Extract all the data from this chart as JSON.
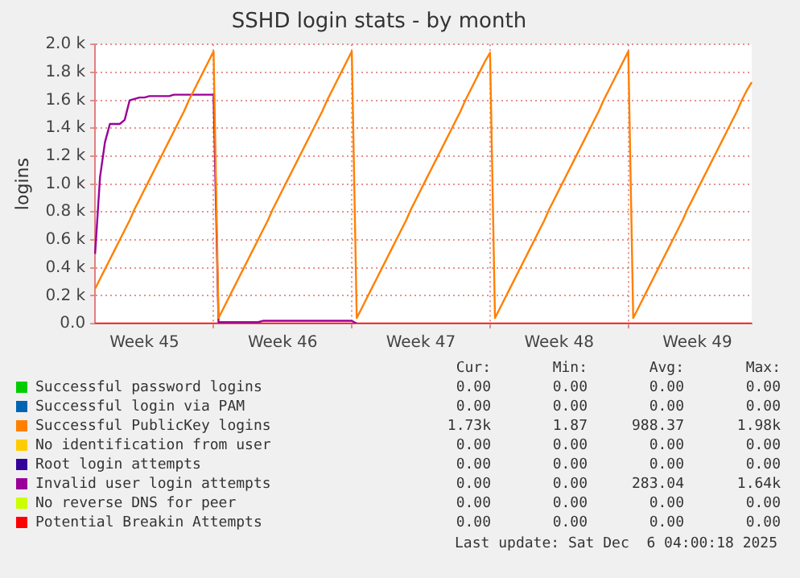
{
  "chart_data": {
    "type": "line",
    "title": "SSHD login stats - by month",
    "ylabel": "logins",
    "categories": [
      null,
      null,
      null,
      null,
      null,
      null,
      null,
      null,
      null,
      null,
      "Week 45",
      null,
      null,
      null,
      null,
      null,
      null,
      null,
      null,
      null,
      null,
      null,
      null,
      null,
      null,
      null,
      null,
      null,
      null,
      null,
      null,
      null,
      null,
      null,
      null,
      null,
      null,
      null,
      "Week 46",
      null,
      null,
      null,
      null,
      null,
      null,
      null,
      null,
      null,
      null,
      null,
      null,
      null,
      null,
      null,
      null,
      null,
      null,
      null,
      null,
      null,
      null,
      null,
      null,
      null,
      null,
      null,
      "Week 47",
      null,
      null,
      null,
      null,
      null,
      null,
      null,
      null,
      null,
      null,
      null,
      null,
      null,
      null,
      null,
      null,
      null,
      null,
      null,
      null,
      null,
      null,
      null,
      null,
      null,
      null,
      null,
      "Week 48",
      null,
      null,
      null,
      null,
      null,
      null,
      null,
      null,
      null,
      null,
      null,
      null,
      null,
      null,
      null,
      null,
      null,
      null,
      null,
      null,
      null,
      null,
      null,
      null,
      null,
      null,
      null,
      "Week 49",
      null,
      null,
      null,
      null,
      null,
      null,
      null,
      null,
      null,
      null,
      null
    ],
    "ylim": [
      0,
      2000
    ],
    "yticks": [
      {
        "value": 0,
        "label": "0.0"
      },
      {
        "value": 200,
        "label": "0.2 k"
      },
      {
        "value": 400,
        "label": "0.4 k"
      },
      {
        "value": 600,
        "label": "0.6 k"
      },
      {
        "value": 800,
        "label": "0.8 k"
      },
      {
        "value": 1000,
        "label": "1.0 k"
      },
      {
        "value": 1200,
        "label": "1.2 k"
      },
      {
        "value": 1400,
        "label": "1.4 k"
      },
      {
        "value": 1600,
        "label": "1.6 k"
      },
      {
        "value": 1800,
        "label": "1.8 k"
      },
      {
        "value": 2000,
        "label": "2.0 k"
      }
    ],
    "grid": true,
    "legend": "bottom",
    "marker": "none",
    "line_style": "solid",
    "series": [
      {
        "name": "Successful password logins",
        "color": "#00cc00",
        "values": [
          null,
          null,
          null,
          null,
          null,
          null,
          null,
          null,
          null,
          null,
          null,
          null,
          null,
          null,
          null,
          null,
          null,
          null,
          null,
          null,
          null,
          null,
          null,
          null,
          null,
          null,
          null,
          null,
          null,
          null,
          null,
          null,
          null,
          null,
          null,
          null,
          null,
          null,
          null,
          null,
          null,
          null,
          null,
          null,
          null,
          null,
          null,
          null,
          null,
          null,
          null,
          null,
          null,
          null,
          null,
          null,
          null,
          null,
          null,
          null,
          null,
          null,
          null,
          null,
          null,
          null,
          null,
          null,
          null,
          null,
          null,
          null,
          null,
          null,
          null,
          null,
          null,
          null,
          null,
          null,
          null,
          null,
          null,
          null,
          null,
          null,
          null,
          null,
          null,
          null,
          null,
          null,
          null,
          null,
          null,
          null,
          null,
          null,
          null,
          null,
          null,
          null,
          null,
          null,
          null,
          null,
          null,
          null,
          null,
          null,
          null,
          null,
          null,
          null,
          null,
          null,
          null,
          null,
          null,
          null,
          null,
          null,
          null,
          null,
          null,
          null,
          null,
          null,
          null,
          null,
          null,
          null,
          null,
          null
        ]
      },
      {
        "name": "Successful login via PAM",
        "color": "#0066b3",
        "values": [
          null,
          null,
          null,
          null,
          null,
          null,
          null,
          null,
          null,
          null,
          null,
          null,
          null,
          null,
          null,
          null,
          null,
          null,
          null,
          null,
          null,
          null,
          null,
          null,
          null,
          null,
          null,
          null,
          null,
          null,
          null,
          null,
          null,
          null,
          null,
          null,
          null,
          null,
          null,
          null,
          null,
          null,
          null,
          null,
          null,
          null,
          null,
          null,
          null,
          null,
          null,
          null,
          null,
          null,
          null,
          null,
          null,
          null,
          null,
          null,
          null,
          null,
          null,
          null,
          null,
          null,
          null,
          null,
          null,
          null,
          null,
          null,
          null,
          null,
          null,
          null,
          null,
          null,
          null,
          null,
          null,
          null,
          null,
          null,
          null,
          null,
          null,
          null,
          null,
          null,
          null,
          null,
          null,
          null,
          null,
          null,
          null,
          null,
          null,
          null,
          null,
          null,
          null,
          null,
          null,
          null,
          null,
          null,
          null,
          null,
          null,
          null,
          null,
          null,
          null,
          null,
          null,
          null,
          null,
          null,
          null,
          null,
          null,
          null,
          null,
          null,
          null,
          null,
          null,
          null,
          null,
          null,
          null,
          null
        ]
      },
      {
        "name": "Successful PublicKey logins",
        "color": "#ff8000",
        "values": [
          250,
          320,
          390,
          460,
          530,
          600,
          670,
          740,
          820,
          890,
          960,
          1030,
          1100,
          1170,
          1240,
          1310,
          1380,
          1450,
          1520,
          1600,
          1670,
          1740,
          1810,
          1880,
          1950,
          40,
          110,
          180,
          250,
          320,
          390,
          460,
          530,
          600,
          670,
          740,
          820,
          890,
          960,
          1030,
          1100,
          1170,
          1240,
          1310,
          1380,
          1450,
          1520,
          1600,
          1670,
          1740,
          1810,
          1880,
          1950,
          40,
          110,
          180,
          250,
          320,
          390,
          460,
          530,
          600,
          670,
          740,
          820,
          890,
          960,
          1030,
          1100,
          1170,
          1240,
          1310,
          1380,
          1450,
          1520,
          1600,
          1670,
          1740,
          1810,
          1880,
          1940,
          40,
          110,
          180,
          250,
          320,
          390,
          460,
          530,
          600,
          670,
          740,
          820,
          890,
          960,
          1030,
          1100,
          1170,
          1240,
          1310,
          1380,
          1450,
          1520,
          1600,
          1670,
          1740,
          1810,
          1880,
          1950,
          40,
          110,
          180,
          250,
          320,
          390,
          460,
          530,
          600,
          670,
          740,
          820,
          890,
          960,
          1030,
          1100,
          1170,
          1240,
          1310,
          1380,
          1450,
          1520,
          1600,
          1670,
          1730
        ]
      },
      {
        "name": "No identification from user",
        "color": "#ffcc00",
        "values": [
          null,
          null,
          null,
          null,
          null,
          null,
          null,
          null,
          null,
          null,
          null,
          null,
          null,
          null,
          null,
          null,
          null,
          null,
          null,
          null,
          null,
          null,
          null,
          null,
          null,
          null,
          null,
          null,
          null,
          null,
          null,
          null,
          null,
          null,
          null,
          null,
          null,
          null,
          null,
          null,
          null,
          null,
          null,
          null,
          null,
          null,
          null,
          null,
          null,
          null,
          null,
          null,
          null,
          null,
          null,
          null,
          null,
          null,
          null,
          null,
          null,
          null,
          null,
          null,
          null,
          null,
          null,
          null,
          null,
          null,
          null,
          null,
          null,
          null,
          null,
          null,
          null,
          null,
          null,
          null,
          null,
          null,
          null,
          null,
          null,
          null,
          null,
          null,
          null,
          null,
          null,
          null,
          null,
          null,
          null,
          null,
          null,
          null,
          null,
          null,
          null,
          null,
          null,
          null,
          null,
          null,
          null,
          null,
          null,
          null,
          null,
          null,
          null,
          null,
          null,
          null,
          null,
          null,
          null,
          null,
          null,
          null,
          null,
          null,
          null,
          null,
          null,
          null,
          null,
          null,
          null,
          null,
          null,
          null
        ]
      },
      {
        "name": "Root login attempts",
        "color": "#330099",
        "values": [
          null,
          null,
          null,
          null,
          null,
          null,
          null,
          null,
          null,
          null,
          null,
          null,
          null,
          null,
          null,
          null,
          null,
          null,
          null,
          null,
          null,
          null,
          null,
          null,
          null,
          null,
          null,
          null,
          null,
          null,
          null,
          null,
          null,
          null,
          null,
          null,
          null,
          null,
          null,
          null,
          null,
          null,
          null,
          null,
          null,
          null,
          null,
          null,
          null,
          null,
          null,
          null,
          null,
          null,
          null,
          null,
          null,
          null,
          null,
          null,
          null,
          null,
          null,
          null,
          null,
          null,
          null,
          null,
          null,
          null,
          null,
          null,
          null,
          null,
          null,
          null,
          null,
          null,
          null,
          null,
          null,
          null,
          null,
          null,
          null,
          null,
          null,
          null,
          null,
          null,
          null,
          null,
          null,
          null,
          null,
          null,
          null,
          null,
          null,
          null,
          null,
          null,
          null,
          null,
          null,
          null,
          null,
          null,
          null,
          null,
          null,
          null,
          null,
          null,
          null,
          null,
          null,
          null,
          null,
          null,
          null,
          null,
          null,
          null,
          null,
          null,
          null,
          null,
          null,
          null,
          null,
          null,
          null,
          null
        ]
      },
      {
        "name": "Invalid user login attempts",
        "color": "#990099",
        "values": [
          500,
          1050,
          1300,
          1430,
          1430,
          1430,
          1460,
          1600,
          1610,
          1620,
          1620,
          1630,
          1630,
          1630,
          1630,
          1630,
          1640,
          1640,
          1640,
          1640,
          1640,
          1640,
          1640,
          1640,
          1640,
          10,
          10,
          10,
          10,
          10,
          10,
          10,
          10,
          10,
          20,
          20,
          20,
          20,
          20,
          20,
          20,
          20,
          20,
          20,
          20,
          20,
          20,
          20,
          20,
          20,
          20,
          20,
          20,
          0,
          null,
          null,
          null,
          null,
          null,
          null,
          null,
          null,
          null,
          null,
          null,
          null,
          null,
          null,
          null,
          null,
          null,
          null,
          null,
          null,
          null,
          null,
          null,
          null,
          null,
          null,
          null,
          null,
          null,
          null,
          null,
          null,
          null,
          null,
          null,
          null,
          null,
          null,
          null,
          null,
          null,
          null,
          null,
          null,
          null,
          null,
          null,
          null,
          null,
          null,
          null,
          null,
          null,
          null,
          null,
          null,
          null,
          null,
          null,
          null,
          null,
          null,
          null,
          null,
          null,
          null,
          null,
          null,
          null,
          null,
          null,
          null,
          null,
          null,
          null,
          null,
          null,
          null,
          null,
          null
        ]
      },
      {
        "name": "No reverse DNS for peer",
        "color": "#ccff00",
        "values": [
          null,
          null,
          null,
          null,
          null,
          null,
          null,
          null,
          null,
          null,
          null,
          null,
          null,
          null,
          null,
          null,
          null,
          null,
          null,
          null,
          null,
          null,
          null,
          null,
          null,
          null,
          null,
          null,
          null,
          null,
          null,
          null,
          null,
          null,
          null,
          null,
          null,
          null,
          null,
          null,
          null,
          null,
          null,
          null,
          null,
          null,
          null,
          null,
          null,
          null,
          null,
          null,
          null,
          null,
          null,
          null,
          null,
          null,
          null,
          null,
          null,
          null,
          null,
          null,
          null,
          null,
          null,
          null,
          null,
          null,
          null,
          null,
          null,
          null,
          null,
          null,
          null,
          null,
          null,
          null,
          null,
          null,
          null,
          null,
          null,
          null,
          null,
          null,
          null,
          null,
          null,
          null,
          null,
          null,
          null,
          null,
          null,
          null,
          null,
          null,
          null,
          null,
          null,
          null,
          null,
          null,
          null,
          null,
          null,
          null,
          null,
          null,
          null,
          null,
          null,
          null,
          null,
          null,
          null,
          null,
          null,
          null,
          null,
          null,
          null,
          null,
          null,
          null,
          null,
          null,
          null,
          null,
          null,
          null
        ]
      },
      {
        "name": "Potential Breakin Attempts",
        "color": "#ff0000",
        "values": [
          0,
          0,
          0,
          0,
          0,
          0,
          0,
          0,
          0,
          0,
          0,
          0,
          0,
          0,
          0,
          0,
          0,
          0,
          0,
          0,
          0,
          0,
          0,
          0,
          0,
          0,
          0,
          0,
          0,
          0,
          0,
          0,
          0,
          0,
          0,
          0,
          0,
          0,
          0,
          0,
          0,
          0,
          0,
          0,
          0,
          0,
          0,
          0,
          0,
          0,
          0,
          0,
          0,
          0,
          0,
          0,
          0,
          0,
          0,
          0,
          0,
          0,
          0,
          0,
          0,
          0,
          0,
          0,
          0,
          0,
          0,
          0,
          0,
          0,
          0,
          0,
          0,
          0,
          0,
          0,
          0,
          0,
          0,
          0,
          0,
          0,
          0,
          0,
          0,
          0,
          0,
          0,
          0,
          0,
          0,
          0,
          0,
          0,
          0,
          0,
          0,
          0,
          0,
          0,
          0,
          0,
          0,
          0,
          0,
          0,
          0,
          0,
          0,
          0,
          0,
          0,
          0,
          0,
          0,
          0,
          0,
          0,
          0,
          0,
          0,
          0,
          0,
          0,
          0,
          0,
          0,
          0,
          0,
          0
        ]
      }
    ],
    "annotations": [
      "Cur:",
      "Min:",
      "Avg:",
      "Max:",
      "0.00",
      "0.00",
      "0.00",
      "0.00",
      "0.00",
      "0.00",
      "0.00",
      "0.00",
      "1.73k",
      "1.87",
      "988.37",
      "1.98k",
      "0.00",
      "0.00",
      "0.00",
      "0.00",
      "0.00",
      "0.00",
      "0.00",
      "0.00",
      "0.00",
      "0.00",
      "283.04",
      "1.64k",
      "0.00",
      "0.00",
      "0.00",
      "0.00",
      "0.00",
      "0.00",
      "0.00",
      "0.00",
      "Last update: Sat Dec  6 04:00:18 2025"
    ]
  }
}
